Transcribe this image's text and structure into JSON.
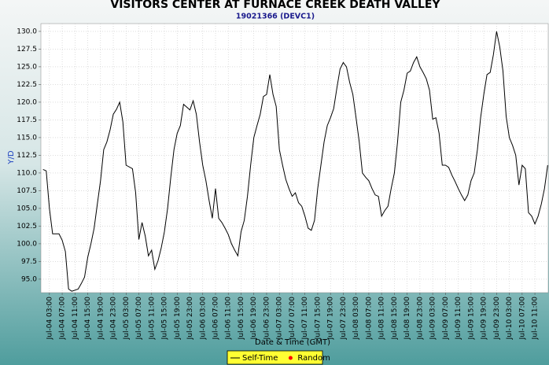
{
  "chart_data": {
    "type": "line",
    "title": "VISITORS CENTER AT FURNACE CREEK DEATH VALLEY",
    "subtitle": "19021366 (DEVC1)",
    "ylabel": "Y/D",
    "xlabel": "Date & Time (GMT)",
    "grid": true,
    "legend": {
      "position": "bottom",
      "entries": [
        {
          "name": "Self-Time",
          "color": "#000000",
          "marker": "line"
        },
        {
          "name": "Random",
          "color": "#ff0000",
          "marker": "dot"
        }
      ]
    },
    "ylim": [
      93.1,
      131.1
    ],
    "yticks": [
      {
        "value": 95,
        "label": "95.0"
      },
      97.5,
      {
        "value": 100,
        "label": "100.0"
      },
      102.5,
      {
        "value": 105,
        "label": "105.0"
      },
      107.5,
      {
        "value": 110,
        "label": "110.0"
      },
      112.5,
      {
        "value": 115,
        "label": "115.0"
      },
      117.5,
      {
        "value": 120,
        "label": "120.0"
      },
      122.5,
      {
        "value": 125,
        "label": "125.0"
      },
      127.5,
      {
        "value": 130,
        "label": "130.0"
      }
    ],
    "xlim": [
      "Jul-04 00:20",
      "Jul-10 15:10"
    ],
    "xticks": [
      "Jul-04 03:00",
      "Jul-04 07:00",
      "Jul-04 11:00",
      "Jul-04 15:00",
      "Jul-04 19:00",
      "Jul-04 23:00",
      "Jul-05 03:00",
      "Jul-05 07:00",
      "Jul-05 11:00",
      "Jul-05 15:00",
      "Jul-05 19:00",
      "Jul-05 23:00",
      "Jul-06 03:00",
      "Jul-06 07:00",
      "Jul-06 11:00",
      "Jul-06 15:00",
      "Jul-06 19:00",
      "Jul-06 23:00",
      "Jul-07 03:00",
      "Jul-07 07:00",
      "Jul-07 11:00",
      "Jul-07 15:00",
      "Jul-07 19:00",
      "Jul-07 23:00",
      "Jul-08 03:00",
      "Jul-08 07:00",
      "Jul-08 11:00",
      "Jul-08 15:00",
      "Jul-08 19:00",
      "Jul-08 23:00",
      "Jul-09 03:00",
      "Jul-09 07:00",
      "Jul-09 11:00",
      "Jul-09 15:00",
      "Jul-09 19:00",
      "Jul-09 23:00",
      "Jul-10 03:00",
      "Jul-10 07:00",
      "Jul-10 11:00"
    ],
    "x": [
      "Jul-04 01:00",
      "Jul-04 02:00",
      "Jul-04 03:00",
      "Jul-04 04:00",
      "Jul-04 06:00",
      "Jul-04 07:00",
      "Jul-04 08:00",
      "Jul-04 09:00",
      "Jul-04 10:00",
      "Jul-04 12:00",
      "Jul-04 13:00",
      "Jul-04 14:00",
      "Jul-04 15:00",
      "Jul-04 16:00",
      "Jul-04 17:00",
      "Jul-04 18:00",
      "Jul-04 19:00",
      "Jul-04 20:00",
      "Jul-04 21:00",
      "Jul-04 22:00",
      "Jul-04 23:00",
      "Jul-05 00:00",
      "Jul-05 01:00",
      "Jul-05 02:00",
      "Jul-05 03:00",
      "Jul-05 05:00",
      "Jul-05 06:00",
      "Jul-05 07:00",
      "Jul-05 08:00",
      "Jul-05 09:00",
      "Jul-05 10:00",
      "Jul-05 11:00",
      "Jul-05 12:00",
      "Jul-05 13:00",
      "Jul-05 14:00",
      "Jul-05 15:00",
      "Jul-05 16:00",
      "Jul-05 17:00",
      "Jul-05 18:00",
      "Jul-05 19:00",
      "Jul-05 20:00",
      "Jul-05 21:00",
      "Jul-05 23:00",
      "Jul-06 00:00",
      "Jul-06 01:00",
      "Jul-06 02:00",
      "Jul-06 03:00",
      "Jul-06 04:00",
      "Jul-06 05:00",
      "Jul-06 06:00",
      "Jul-06 07:00",
      "Jul-06 08:00",
      "Jul-06 09:00",
      "Jul-06 10:00",
      "Jul-06 11:00",
      "Jul-06 12:00",
      "Jul-06 13:00",
      "Jul-06 14:00",
      "Jul-06 15:00",
      "Jul-06 16:00",
      "Jul-06 17:00",
      "Jul-06 18:00",
      "Jul-06 19:00",
      "Jul-06 20:00",
      "Jul-06 21:00",
      "Jul-06 22:00",
      "Jul-06 23:00",
      "Jul-07 00:00",
      "Jul-07 01:00",
      "Jul-07 02:00",
      "Jul-07 03:00",
      "Jul-07 04:00",
      "Jul-07 05:00",
      "Jul-07 06:00",
      "Jul-07 07:00",
      "Jul-07 08:00",
      "Jul-07 09:00",
      "Jul-07 10:00",
      "Jul-07 11:00",
      "Jul-07 12:00",
      "Jul-07 13:00",
      "Jul-07 14:00",
      "Jul-07 15:00",
      "Jul-07 16:00",
      "Jul-07 17:00",
      "Jul-07 18:00",
      "Jul-07 19:00",
      "Jul-07 20:00",
      "Jul-07 21:00",
      "Jul-07 22:00",
      "Jul-07 23:00",
      "Jul-08 00:00",
      "Jul-08 01:00",
      "Jul-08 02:00",
      "Jul-08 03:00",
      "Jul-08 04:00",
      "Jul-08 05:00",
      "Jul-08 06:00",
      "Jul-08 07:00",
      "Jul-08 08:00",
      "Jul-08 09:00",
      "Jul-08 10:00",
      "Jul-08 11:00",
      "Jul-08 12:00",
      "Jul-08 13:00",
      "Jul-08 14:00",
      "Jul-08 15:00",
      "Jul-08 16:00",
      "Jul-08 17:00",
      "Jul-08 18:00",
      "Jul-08 19:00",
      "Jul-08 20:00",
      "Jul-08 21:00",
      "Jul-08 22:00",
      "Jul-08 23:00",
      "Jul-09 00:00",
      "Jul-09 01:00",
      "Jul-09 02:00",
      "Jul-09 03:00",
      "Jul-09 04:00",
      "Jul-09 05:00",
      "Jul-09 06:00",
      "Jul-09 07:00",
      "Jul-09 08:00",
      "Jul-09 09:00",
      "Jul-09 10:00",
      "Jul-09 11:00",
      "Jul-09 12:00",
      "Jul-09 13:00",
      "Jul-09 14:00",
      "Jul-09 15:00",
      "Jul-09 16:00",
      "Jul-09 17:00",
      "Jul-09 18:00",
      "Jul-09 19:00",
      "Jul-09 20:00",
      "Jul-09 21:00",
      "Jul-09 22:00",
      "Jul-09 23:00",
      "Jul-10 00:00",
      "Jul-10 01:00",
      "Jul-10 02:00",
      "Jul-10 03:00",
      "Jul-10 04:00",
      "Jul-10 05:00",
      "Jul-10 06:00",
      "Jul-10 07:00",
      "Jul-10 08:00",
      "Jul-10 09:00",
      "Jul-10 10:00",
      "Jul-10 11:00",
      "Jul-10 12:00",
      "Jul-10 13:00",
      "Jul-10 14:00",
      "Jul-10 15:00"
    ],
    "series": [
      {
        "color": "#000000",
        "values": [
          110.5,
          110.3,
          105.0,
          101.4,
          101.4,
          100.5,
          98.9,
          93.6,
          93.3,
          93.6,
          94.4,
          95.3,
          98.1,
          100.0,
          102.2,
          105.6,
          108.9,
          113.3,
          114.4,
          116.1,
          118.3,
          119.0,
          120.0,
          117.2,
          111.1,
          110.6,
          107.2,
          100.6,
          103.0,
          101.1,
          98.3,
          99.1,
          96.4,
          97.6,
          99.4,
          101.7,
          105.0,
          109.4,
          113.3,
          115.6,
          116.7,
          119.7,
          118.9,
          120.2,
          118.3,
          114.4,
          111.1,
          108.9,
          106.1,
          103.6,
          107.8,
          103.6,
          103.0,
          102.2,
          101.3,
          100.0,
          99.1,
          98.3,
          101.7,
          103.3,
          106.7,
          111.1,
          115.0,
          116.7,
          118.3,
          120.8,
          121.1,
          123.9,
          121.1,
          119.4,
          113.3,
          111.1,
          109.1,
          107.8,
          106.7,
          107.2,
          105.8,
          105.3,
          103.9,
          102.2,
          101.9,
          103.3,
          107.8,
          111.1,
          114.4,
          116.7,
          117.8,
          119.1,
          122.0,
          124.7,
          125.6,
          125.0,
          122.8,
          121.1,
          117.8,
          114.4,
          110.0,
          109.4,
          108.9,
          107.8,
          106.9,
          106.7,
          103.9,
          104.7,
          105.3,
          107.8,
          110.0,
          114.4,
          120.0,
          121.7,
          124.1,
          124.4,
          125.6,
          126.4,
          125.0,
          124.2,
          123.3,
          121.7,
          117.6,
          117.8,
          115.6,
          111.1,
          111.1,
          110.8,
          109.7,
          108.8,
          107.8,
          106.9,
          106.1,
          106.9,
          108.9,
          110.0,
          113.3,
          117.8,
          121.1,
          123.9,
          124.2,
          126.7,
          130.0,
          127.8,
          124.4,
          118.0,
          115.0,
          113.9,
          112.5,
          108.3,
          111.1,
          110.6,
          104.4,
          103.9,
          102.8,
          103.9,
          105.6,
          107.8,
          111.1
        ]
      }
    ]
  }
}
